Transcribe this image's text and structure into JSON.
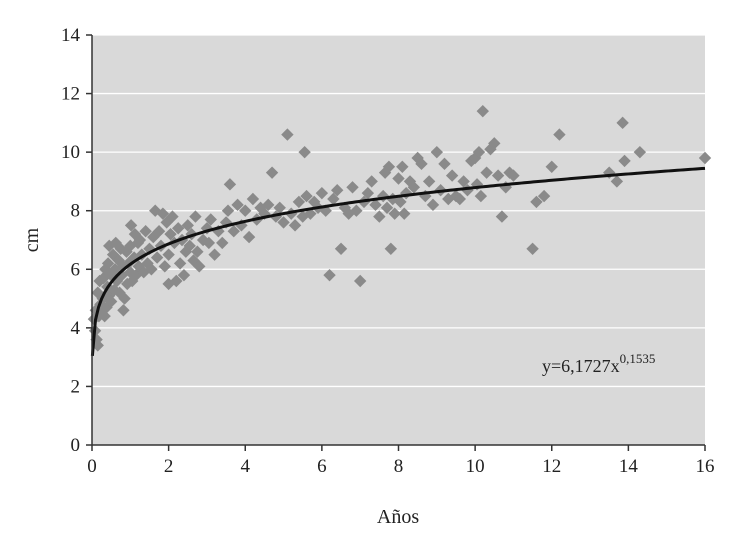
{
  "chart_data": {
    "type": "scatter",
    "xlabel": "Años",
    "ylabel": "cm",
    "xlim": [
      0,
      16
    ],
    "ylim": [
      0,
      14
    ],
    "x_ticks": [
      "0",
      "2",
      "4",
      "6",
      "8",
      "10",
      "12",
      "14",
      "16"
    ],
    "y_ticks": [
      "0",
      "2",
      "4",
      "6",
      "8",
      "10",
      "12",
      "14"
    ],
    "grid": "horizontal",
    "background_color": "#d9d9d9",
    "marker": "diamond",
    "marker_color": "#8a8a8a",
    "trendline": {
      "type": "power",
      "a": 6.1727,
      "b": 0.1535,
      "color": "#111111",
      "label_prefix": "y=6,1727x",
      "label_exponent": "0,1535"
    },
    "points": [
      [
        0.05,
        4.3
      ],
      [
        0.08,
        3.9
      ],
      [
        0.1,
        4.6
      ],
      [
        0.12,
        3.6
      ],
      [
        0.15,
        3.4
      ],
      [
        0.15,
        5.2
      ],
      [
        0.18,
        4.4
      ],
      [
        0.2,
        5.6
      ],
      [
        0.22,
        4.8
      ],
      [
        0.25,
        4.5
      ],
      [
        0.28,
        5.0
      ],
      [
        0.3,
        5.7
      ],
      [
        0.33,
        4.4
      ],
      [
        0.35,
        6.0
      ],
      [
        0.38,
        4.7
      ],
      [
        0.4,
        5.4
      ],
      [
        0.42,
        6.2
      ],
      [
        0.45,
        5.1
      ],
      [
        0.45,
        6.8
      ],
      [
        0.5,
        5.8
      ],
      [
        0.5,
        4.9
      ],
      [
        0.55,
        6.5
      ],
      [
        0.58,
        5.3
      ],
      [
        0.6,
        6.0
      ],
      [
        0.62,
        6.9
      ],
      [
        0.65,
        5.6
      ],
      [
        0.7,
        6.3
      ],
      [
        0.72,
        5.2
      ],
      [
        0.75,
        6.7
      ],
      [
        0.78,
        5.8
      ],
      [
        0.8,
        6.1
      ],
      [
        0.82,
        4.6
      ],
      [
        0.85,
        5.0
      ],
      [
        0.9,
        6.6
      ],
      [
        0.92,
        5.5
      ],
      [
        0.95,
        6.2
      ],
      [
        1.0,
        5.9
      ],
      [
        1.0,
        6.8
      ],
      [
        1.02,
        7.5
      ],
      [
        1.05,
        5.6
      ],
      [
        1.1,
        6.4
      ],
      [
        1.12,
        7.2
      ],
      [
        1.15,
        5.8
      ],
      [
        1.2,
        6.9
      ],
      [
        1.22,
        6.1
      ],
      [
        1.25,
        7.0
      ],
      [
        1.3,
        6.5
      ],
      [
        1.35,
        5.9
      ],
      [
        1.4,
        7.3
      ],
      [
        1.45,
        6.2
      ],
      [
        1.5,
        6.7
      ],
      [
        1.55,
        6.0
      ],
      [
        1.6,
        7.1
      ],
      [
        1.65,
        8.0
      ],
      [
        1.7,
        6.4
      ],
      [
        1.75,
        7.3
      ],
      [
        1.8,
        6.8
      ],
      [
        1.85,
        7.9
      ],
      [
        1.9,
        6.1
      ],
      [
        1.95,
        7.6
      ],
      [
        2.0,
        6.5
      ],
      [
        2.0,
        5.5
      ],
      [
        2.05,
        7.2
      ],
      [
        2.1,
        7.8
      ],
      [
        2.15,
        6.9
      ],
      [
        2.2,
        5.6
      ],
      [
        2.25,
        7.4
      ],
      [
        2.3,
        6.2
      ],
      [
        2.35,
        7.0
      ],
      [
        2.4,
        5.8
      ],
      [
        2.45,
        6.6
      ],
      [
        2.5,
        7.5
      ],
      [
        2.55,
        6.8
      ],
      [
        2.6,
        7.2
      ],
      [
        2.65,
        6.3
      ],
      [
        2.7,
        7.8
      ],
      [
        2.75,
        6.6
      ],
      [
        2.8,
        6.1
      ],
      [
        2.9,
        7.0
      ],
      [
        3.0,
        7.4
      ],
      [
        3.05,
        6.9
      ],
      [
        3.1,
        7.7
      ],
      [
        3.2,
        6.5
      ],
      [
        3.3,
        7.3
      ],
      [
        3.4,
        6.9
      ],
      [
        3.5,
        7.6
      ],
      [
        3.55,
        8.0
      ],
      [
        3.6,
        8.9
      ],
      [
        3.7,
        7.3
      ],
      [
        3.8,
        8.2
      ],
      [
        3.9,
        7.5
      ],
      [
        4.0,
        8.0
      ],
      [
        4.1,
        7.1
      ],
      [
        4.2,
        8.4
      ],
      [
        4.3,
        7.7
      ],
      [
        4.4,
        8.1
      ],
      [
        4.5,
        7.9
      ],
      [
        4.6,
        8.2
      ],
      [
        4.7,
        9.3
      ],
      [
        4.8,
        7.8
      ],
      [
        4.9,
        8.1
      ],
      [
        5.0,
        7.6
      ],
      [
        5.1,
        10.6
      ],
      [
        5.2,
        7.9
      ],
      [
        5.3,
        7.5
      ],
      [
        5.4,
        8.3
      ],
      [
        5.5,
        7.8
      ],
      [
        5.55,
        10.0
      ],
      [
        5.6,
        8.5
      ],
      [
        5.7,
        7.9
      ],
      [
        5.8,
        8.3
      ],
      [
        5.9,
        8.1
      ],
      [
        6.0,
        8.6
      ],
      [
        6.1,
        8.0
      ],
      [
        6.2,
        5.8
      ],
      [
        6.3,
        8.4
      ],
      [
        6.4,
        8.7
      ],
      [
        6.5,
        6.7
      ],
      [
        6.6,
        8.1
      ],
      [
        6.7,
        7.9
      ],
      [
        6.8,
        8.8
      ],
      [
        6.9,
        8.0
      ],
      [
        7.0,
        5.6
      ],
      [
        7.1,
        8.3
      ],
      [
        7.2,
        8.6
      ],
      [
        7.3,
        9.0
      ],
      [
        7.4,
        8.2
      ],
      [
        7.5,
        7.8
      ],
      [
        7.6,
        8.5
      ],
      [
        7.65,
        9.3
      ],
      [
        7.7,
        8.1
      ],
      [
        7.75,
        9.5
      ],
      [
        7.8,
        6.7
      ],
      [
        7.85,
        8.4
      ],
      [
        7.9,
        7.9
      ],
      [
        8.0,
        9.1
      ],
      [
        8.05,
        8.3
      ],
      [
        8.1,
        9.5
      ],
      [
        8.15,
        7.9
      ],
      [
        8.2,
        8.6
      ],
      [
        8.3,
        9.0
      ],
      [
        8.4,
        8.8
      ],
      [
        8.5,
        9.8
      ],
      [
        8.6,
        9.6
      ],
      [
        8.7,
        8.5
      ],
      [
        8.8,
        9.0
      ],
      [
        8.9,
        8.2
      ],
      [
        9.0,
        10.0
      ],
      [
        9.1,
        8.7
      ],
      [
        9.2,
        9.6
      ],
      [
        9.3,
        8.4
      ],
      [
        9.4,
        9.2
      ],
      [
        9.5,
        8.5
      ],
      [
        9.6,
        8.4
      ],
      [
        9.7,
        9.0
      ],
      [
        9.8,
        8.7
      ],
      [
        9.9,
        9.7
      ],
      [
        10.0,
        9.8
      ],
      [
        10.05,
        8.9
      ],
      [
        10.1,
        10.0
      ],
      [
        10.15,
        8.5
      ],
      [
        10.2,
        11.4
      ],
      [
        10.3,
        9.3
      ],
      [
        10.4,
        10.1
      ],
      [
        10.5,
        10.3
      ],
      [
        10.6,
        9.2
      ],
      [
        10.7,
        7.8
      ],
      [
        10.8,
        8.8
      ],
      [
        10.9,
        9.3
      ],
      [
        11.0,
        9.2
      ],
      [
        11.5,
        6.7
      ],
      [
        11.6,
        8.3
      ],
      [
        11.8,
        8.5
      ],
      [
        12.0,
        9.5
      ],
      [
        12.2,
        10.6
      ],
      [
        13.5,
        9.3
      ],
      [
        13.7,
        9.0
      ],
      [
        13.85,
        11.0
      ],
      [
        13.9,
        9.7
      ],
      [
        14.3,
        10.0
      ],
      [
        16.0,
        9.8
      ]
    ]
  }
}
